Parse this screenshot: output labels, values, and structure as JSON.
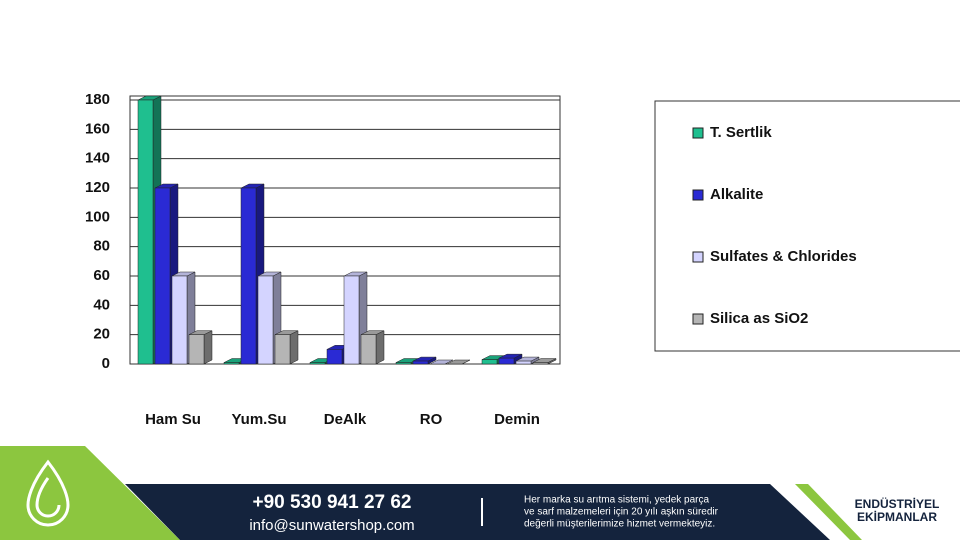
{
  "chart_data": {
    "type": "bar3d",
    "categories": [
      "Ham Su",
      "Yum.Su",
      "DeAlk",
      "RO",
      "Demin"
    ],
    "series": [
      {
        "name": "T. Sertlik",
        "color": "#1fbf8f",
        "values": [
          180,
          1,
          1,
          1,
          3
        ]
      },
      {
        "name": "Alkalite",
        "color": "#2a2ad4",
        "values": [
          120,
          120,
          10,
          2,
          4
        ]
      },
      {
        "name": "Sulfates & Chlorides",
        "color": "#d4d4ff",
        "values": [
          60,
          60,
          60,
          0,
          2
        ]
      },
      {
        "name": "Silica as SiO2",
        "color": "#b5b5b5",
        "values": [
          20,
          20,
          20,
          0,
          1
        ]
      }
    ],
    "ylim": [
      0,
      180
    ],
    "yticks": [
      0,
      20,
      40,
      60,
      80,
      100,
      120,
      140,
      160,
      180
    ],
    "grid": true
  },
  "footer": {
    "phone": "+90 530 941 27 62",
    "email": "info@sunwatershop.com",
    "text": [
      "Her marka su arıtma sistemi, yedek parça",
      "ve sarf malzemeleri için 20 yılı aşkın süredir",
      "değerli müşterilerimize hizmet vermekteyiz."
    ],
    "brand": [
      "ENDÜSTRİYEL",
      "EKİPMANLAR"
    ]
  }
}
